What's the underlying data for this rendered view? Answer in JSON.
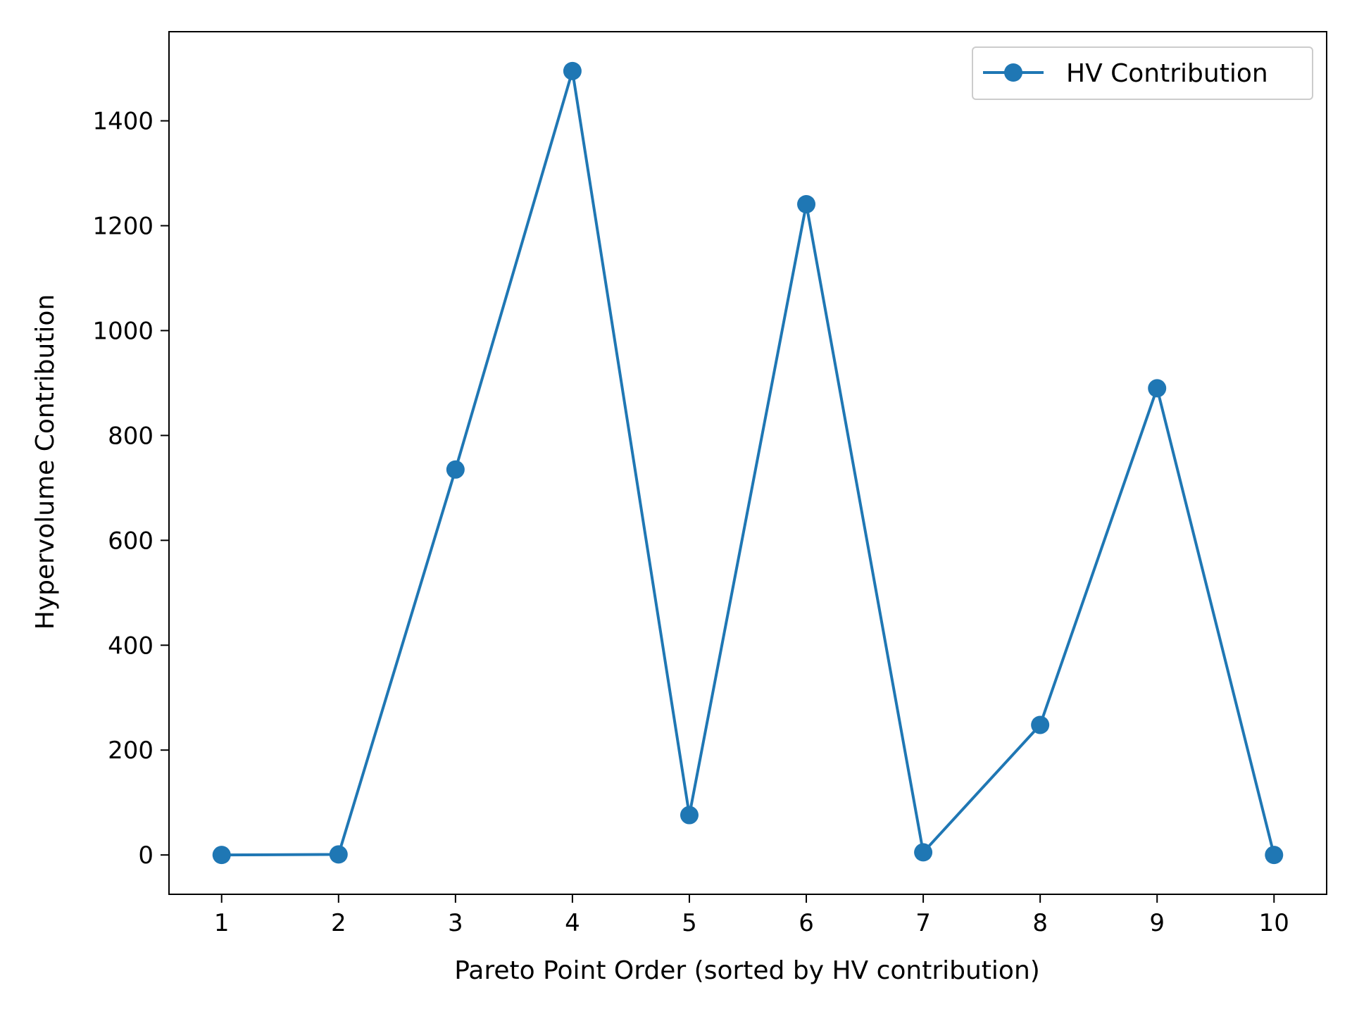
{
  "chart_data": {
    "type": "line",
    "title": "",
    "xlabel": "Pareto Point Order (sorted by HV contribution)",
    "ylabel": "Hypervolume Contribution",
    "x": [
      1,
      2,
      3,
      4,
      5,
      6,
      7,
      8,
      9,
      10
    ],
    "x_ticks": [
      "1",
      "2",
      "3",
      "4",
      "5",
      "6",
      "7",
      "8",
      "9",
      "10"
    ],
    "y_ticks": [
      0,
      200,
      400,
      600,
      800,
      1000,
      1200,
      1400
    ],
    "xlim": [
      0.55,
      10.45
    ],
    "ylim": [
      -75,
      1570
    ],
    "grid": false,
    "legend_position": "upper-right",
    "series": [
      {
        "name": "HV Contribution",
        "color": "#1f77b4",
        "marker": "circle",
        "values": [
          0,
          1,
          735,
          1495,
          76,
          1241,
          5,
          248,
          890,
          0
        ]
      }
    ]
  }
}
